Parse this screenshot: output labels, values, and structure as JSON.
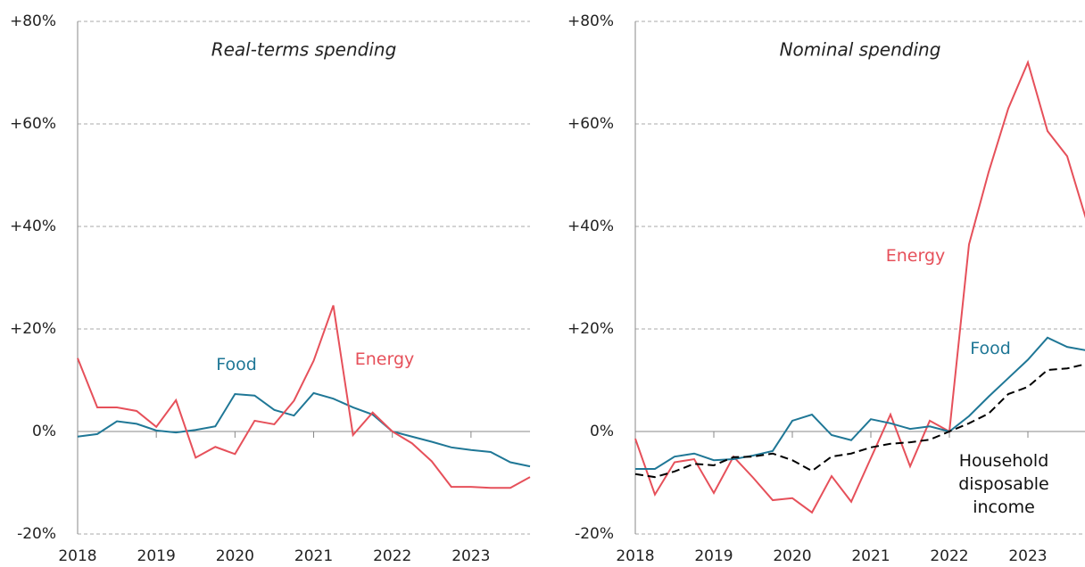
{
  "chart_data": [
    {
      "type": "line",
      "title": "Real-terms spending",
      "x": [
        2018,
        2018.25,
        2018.5,
        2018.75,
        2019,
        2019.25,
        2019.5,
        2019.75,
        2020,
        2020.25,
        2020.5,
        2020.75,
        2021,
        2021.25,
        2021.5,
        2021.75,
        2022,
        2022.25,
        2022.5,
        2022.75,
        2023,
        2023.25,
        2023.5,
        2023.75
      ],
      "xlim": [
        2018,
        2023.75
      ],
      "xticks": [
        2018,
        2019,
        2020,
        2021,
        2022,
        2023
      ],
      "ylim": [
        -20,
        80
      ],
      "yticks": [
        {
          "value": -20,
          "label": "-20%"
        },
        {
          "value": 0,
          "label": "0%"
        },
        {
          "value": 20,
          "label": "+20%"
        },
        {
          "value": 40,
          "label": "+40%"
        },
        {
          "value": 60,
          "label": "+60%"
        },
        {
          "value": 80,
          "label": "+80%"
        }
      ],
      "grid": true,
      "series": [
        {
          "name": "Food",
          "color": "#1f7796",
          "values": [
            -1,
            -0.5,
            2,
            1.5,
            0.2,
            -0.2,
            0.3,
            1,
            7.3,
            7,
            4.2,
            3.1,
            7.5,
            6.4,
            4.7,
            3.3,
            0,
            -1,
            -2,
            -3.1,
            -3.6,
            -4,
            -6,
            -6.8
          ]
        },
        {
          "name": "Energy",
          "color": "#e6505a",
          "values": [
            14.3,
            4.7,
            4.7,
            4,
            0.9,
            6.1,
            -5.1,
            -3,
            -4.4,
            2.1,
            1.4,
            6,
            13.8,
            24.6,
            -0.7,
            3.7,
            0,
            -2.3,
            -5.8,
            -10.8,
            -10.8,
            -11,
            -11,
            -8.9
          ]
        }
      ]
    },
    {
      "type": "line",
      "title": "Nominal spending",
      "x": [
        2018,
        2018.25,
        2018.5,
        2018.75,
        2019,
        2019.25,
        2019.5,
        2019.75,
        2020,
        2020.25,
        2020.5,
        2020.75,
        2021,
        2021.25,
        2021.5,
        2021.75,
        2022,
        2022.25,
        2022.5,
        2022.75,
        2023,
        2023.25,
        2023.5,
        2023.75
      ],
      "xlim": [
        2018,
        2023.75
      ],
      "xticks": [
        2018,
        2019,
        2020,
        2021,
        2022,
        2023
      ],
      "ylim": [
        -20,
        80
      ],
      "yticks": [
        {
          "value": -20,
          "label": "-20%"
        },
        {
          "value": 0,
          "label": "0%"
        },
        {
          "value": 20,
          "label": "+20%"
        },
        {
          "value": 40,
          "label": "+40%"
        },
        {
          "value": 60,
          "label": "+60%"
        },
        {
          "value": 80,
          "label": "+80%"
        }
      ],
      "grid": true,
      "series": [
        {
          "name": "Energy",
          "color": "#e6505a",
          "values": [
            -1.4,
            -12.3,
            -6,
            -5.4,
            -12,
            -4.9,
            -9,
            -13.4,
            -13,
            -15.8,
            -8.7,
            -13.7,
            -5.2,
            3.3,
            -6.8,
            2.1,
            0,
            36.5,
            50.6,
            63,
            72,
            58.6,
            53.7,
            41
          ]
        },
        {
          "name": "Food",
          "color": "#1f7796",
          "values": [
            -7.3,
            -7.3,
            -4.9,
            -4.3,
            -5.6,
            -5.4,
            -4.7,
            -3.8,
            2.1,
            3.3,
            -0.7,
            -1.7,
            2.4,
            1.6,
            0.5,
            1,
            0,
            3,
            6.8,
            10.4,
            14,
            18.3,
            16.5,
            15.8
          ]
        },
        {
          "name": "Household disposable income",
          "color": "#000000",
          "dashed": true,
          "values": [
            -8.3,
            -8.9,
            -7.8,
            -6.3,
            -6.6,
            -5,
            -4.9,
            -4.3,
            -5.6,
            -7.7,
            -4.9,
            -4.3,
            -3.1,
            -2.4,
            -2.1,
            -1.6,
            0,
            1.6,
            3.5,
            7.3,
            8.7,
            12,
            12.3,
            13.2
          ]
        }
      ]
    }
  ]
}
